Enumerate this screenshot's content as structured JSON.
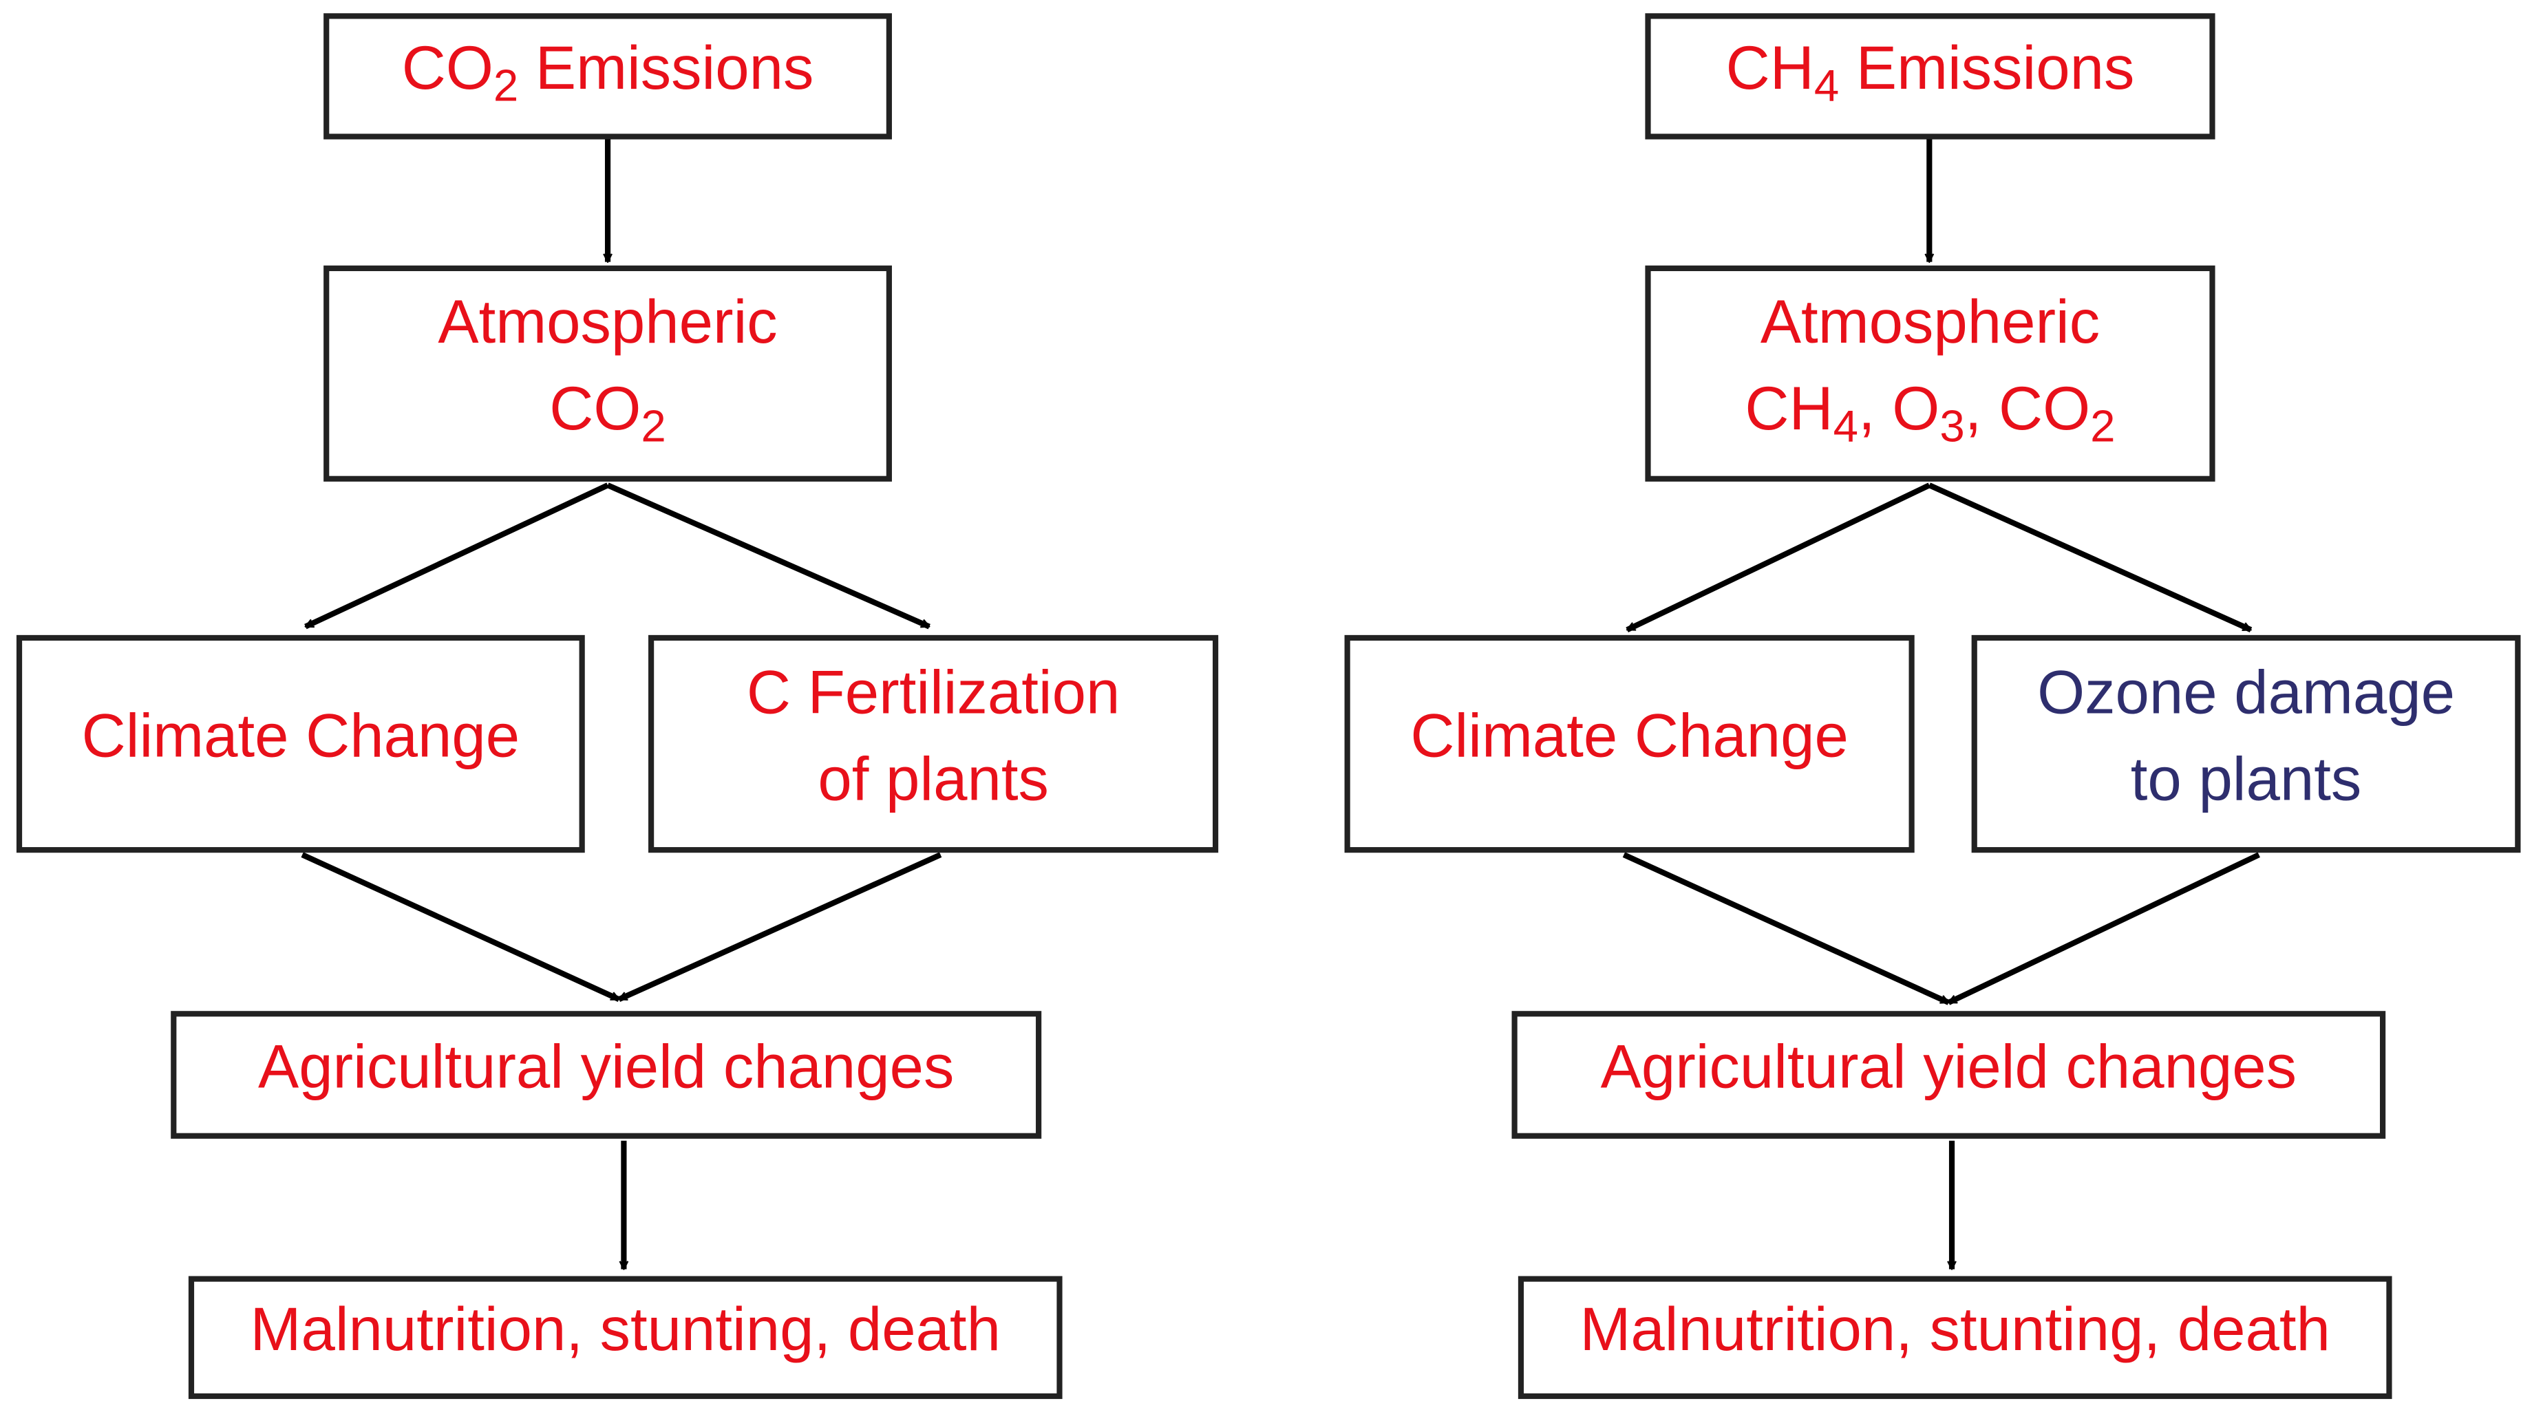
{
  "flowcharts": [
    {
      "nodes": [
        {
          "color": "#e8101a",
          "lines": [
            [
              "CO",
              {
                "sub": "2"
              },
              " Emissions"
            ]
          ]
        },
        {
          "color": "#e8101a",
          "lines": [
            [
              "Atmospheric"
            ],
            [
              "CO",
              {
                "sub": "2"
              }
            ]
          ]
        },
        {
          "color": "#e8101a",
          "lines": [
            [
              "Climate Change"
            ]
          ]
        },
        {
          "color": "#e8101a",
          "lines": [
            [
              "C Fertilization"
            ],
            [
              "of plants"
            ]
          ]
        },
        {
          "color": "#e8101a",
          "lines": [
            [
              "Agricultural yield changes"
            ]
          ]
        },
        {
          "color": "#e8101a",
          "lines": [
            [
              "Malnutrition, stunting, death"
            ]
          ]
        }
      ]
    },
    {
      "nodes": [
        {
          "color": "#e8101a",
          "lines": [
            [
              "CH",
              {
                "sub": "4"
              },
              " Emissions"
            ]
          ]
        },
        {
          "color": "#e8101a",
          "lines": [
            [
              "Atmospheric"
            ],
            [
              "CH",
              {
                "sub": "4"
              },
              ", O",
              {
                "sub": "3"
              },
              ", CO",
              {
                "sub": "2"
              }
            ]
          ]
        },
        {
          "color": "#e8101a",
          "lines": [
            [
              "Climate Change"
            ]
          ]
        },
        {
          "color": "#2e2e6e",
          "lines": [
            [
              "Ozone damage"
            ],
            [
              "to plants"
            ]
          ]
        },
        {
          "color": "#e8101a",
          "lines": [
            [
              "Agricultural yield changes"
            ]
          ]
        },
        {
          "color": "#e8101a",
          "lines": [
            [
              "Malnutrition, stunting, death"
            ]
          ]
        }
      ]
    }
  ]
}
